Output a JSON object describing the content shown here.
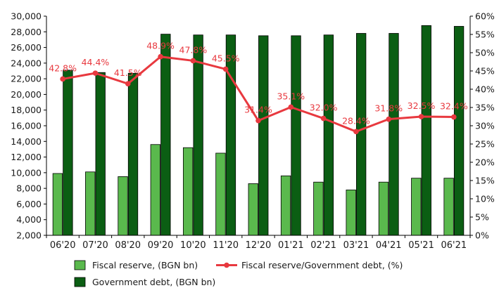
{
  "chart_data": {
    "type": "bar",
    "title": "",
    "xlabel": "",
    "ylabel": "",
    "y2label": "",
    "categories": [
      "06'20",
      "07'20",
      "08'20",
      "09'20",
      "10'20",
      "11'20",
      "12'20",
      "01'21",
      "02'21",
      "03'21",
      "04'21",
      "05'21",
      "06'21"
    ],
    "ylim": [
      2000,
      30000
    ],
    "y_ticks": [
      "2,000",
      "4,000",
      "6,000",
      "8,000",
      "10,000",
      "12,000",
      "14,000",
      "16,000",
      "18,000",
      "20,000",
      "22,000",
      "24,000",
      "26,000",
      "28,000",
      "30,000"
    ],
    "y2lim": [
      0,
      60
    ],
    "y2_ticks": [
      "0%",
      "5%",
      "10%",
      "15%",
      "20%",
      "25%",
      "30%",
      "35%",
      "40%",
      "45%",
      "50%",
      "55%",
      "60%"
    ],
    "grid": false,
    "legend_position": "bottom",
    "series": [
      {
        "name": "Fiscal reserve, (BGN bn)",
        "type": "bar",
        "axis": "left",
        "color": "#5ab94d",
        "values": [
          9900,
          10100,
          9500,
          13600,
          13200,
          12500,
          8600,
          9600,
          8800,
          7800,
          8800,
          9300,
          9300
        ]
      },
      {
        "name": "Government debt, (BGN bn)",
        "type": "bar",
        "axis": "left",
        "color": "#0b5e13",
        "values": [
          23100,
          22800,
          22700,
          27700,
          27600,
          27600,
          27500,
          27500,
          27600,
          27800,
          27800,
          28800,
          28700
        ]
      },
      {
        "name": "Fiscal reserve/Government debt, (%)",
        "type": "line",
        "axis": "right",
        "color": "#e8393f",
        "values": [
          42.8,
          44.4,
          41.5,
          48.9,
          47.8,
          45.5,
          31.4,
          35.1,
          32.0,
          28.4,
          31.8,
          32.5,
          32.4
        ],
        "labels": [
          "42.8%",
          "44.4%",
          "41.5%",
          "48.9%",
          "47.8%",
          "45.5%",
          "31.4%",
          "35.1%",
          "32.0%",
          "28.4%",
          "31.8%",
          "32.5%",
          "32.4%"
        ]
      }
    ]
  }
}
